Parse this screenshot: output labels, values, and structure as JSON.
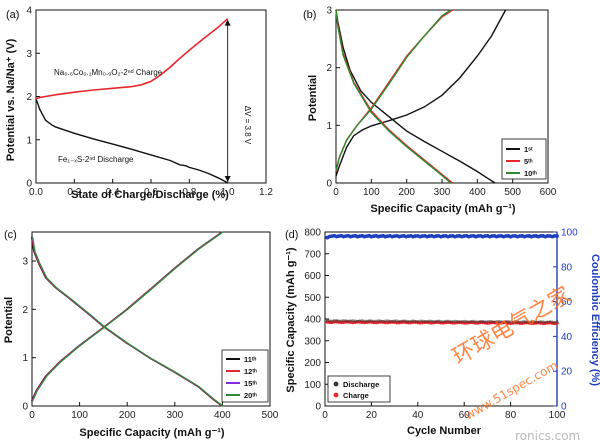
{
  "chart_data": [
    {
      "panel": "(a)",
      "type": "line",
      "xlabel": "State of Charge/Discharge (%)",
      "ylabel": "Potential vs. Na/Na⁺ (V)",
      "xlim": [
        0.0,
        1.2
      ],
      "ylim": [
        0,
        4
      ],
      "xticks": [
        "0.0",
        "0.2",
        "0.4",
        "0.6",
        "0.8",
        "1.0",
        "1.2"
      ],
      "yticks": [
        "0",
        "1",
        "2",
        "3",
        "4"
      ],
      "annotations": {
        "charge": "Na₀.₆Co₀.₁Mn₀.₉O₂-2ⁿᵈ Charge",
        "discharge": "Fe₁₋ₓS-2ⁿᵈ Discharge",
        "delta": "ΔV = 3.8 V"
      },
      "series": [
        {
          "name": "Na0.6Co0.1Mn0.9O2-2nd Charge",
          "color": "#e8262b",
          "x": [
            0.0,
            0.02,
            0.05,
            0.1,
            0.2,
            0.3,
            0.4,
            0.5,
            0.55,
            0.6,
            0.65,
            0.7,
            0.75,
            0.8,
            0.85,
            0.9,
            0.95,
            1.0
          ],
          "y": [
            1.95,
            1.98,
            2.0,
            2.04,
            2.1,
            2.15,
            2.19,
            2.23,
            2.27,
            2.35,
            2.5,
            2.68,
            2.88,
            3.07,
            3.25,
            3.43,
            3.6,
            3.8
          ]
        },
        {
          "name": "Fe1-xS-2nd Discharge",
          "color": "#111111",
          "x": [
            0.0,
            0.02,
            0.05,
            0.08,
            0.1,
            0.2,
            0.3,
            0.4,
            0.5,
            0.6,
            0.7,
            0.75,
            0.78,
            0.8,
            0.85,
            0.9,
            0.95,
            0.98,
            1.0
          ],
          "y": [
            1.95,
            1.7,
            1.45,
            1.35,
            1.3,
            1.15,
            1.02,
            0.9,
            0.78,
            0.65,
            0.52,
            0.42,
            0.4,
            0.36,
            0.3,
            0.22,
            0.12,
            0.05,
            0.0
          ]
        }
      ]
    },
    {
      "panel": "(b)",
      "type": "line",
      "xlabel": "Specific Capacity (mAh g⁻¹)",
      "ylabel": "Potential",
      "xlim": [
        0,
        600
      ],
      "ylim": [
        0,
        3
      ],
      "xticks": [
        "0",
        "100",
        "200",
        "300",
        "400",
        "500",
        "600"
      ],
      "yticks": [
        "0",
        "1",
        "2",
        "3"
      ],
      "legend": {
        "position": "bottom-right",
        "labels": [
          "1ˢᵗ",
          "5ᵗʰ",
          "10ᵗʰ"
        ]
      },
      "series": [
        {
          "name": "1st",
          "color": "#111111",
          "charge": {
            "x": [
              0,
              10,
              30,
              50,
              75,
              100,
              150,
              200,
              250,
              300,
              350,
              400,
              440,
              480
            ],
            "y": [
              0.12,
              0.3,
              0.62,
              0.82,
              0.92,
              0.99,
              1.08,
              1.18,
              1.32,
              1.52,
              1.82,
              2.2,
              2.55,
              3.0
            ]
          },
          "discharge": {
            "x": [
              0,
              5,
              20,
              40,
              70,
              100,
              150,
              200,
              250,
              300,
              350,
              400,
              430,
              450
            ],
            "y": [
              3.0,
              2.8,
              2.35,
              1.95,
              1.6,
              1.4,
              1.15,
              0.9,
              0.72,
              0.55,
              0.38,
              0.2,
              0.08,
              0.0
            ]
          }
        },
        {
          "name": "5th",
          "color": "#e8262b",
          "charge": {
            "x": [
              0,
              10,
              30,
              60,
              100,
              150,
              200,
              250,
              300,
              330
            ],
            "y": [
              0.2,
              0.45,
              0.75,
              1.0,
              1.3,
              1.75,
              2.2,
              2.55,
              2.88,
              3.0
            ]
          },
          "discharge": {
            "x": [
              0,
              5,
              20,
              50,
              100,
              150,
              200,
              250,
              290,
              330
            ],
            "y": [
              3.0,
              2.75,
              2.25,
              1.75,
              1.25,
              0.92,
              0.65,
              0.4,
              0.2,
              0.0
            ]
          }
        },
        {
          "name": "10th",
          "color": "#2e8b2e",
          "charge": {
            "x": [
              0,
              10,
              30,
              60,
              100,
              150,
              200,
              250,
              300,
              325
            ],
            "y": [
              0.22,
              0.45,
              0.74,
              1.0,
              1.28,
              1.72,
              2.18,
              2.55,
              2.9,
              3.0
            ]
          },
          "discharge": {
            "x": [
              0,
              5,
              20,
              50,
              100,
              150,
              200,
              250,
              290,
              325
            ],
            "y": [
              3.0,
              2.72,
              2.22,
              1.73,
              1.22,
              0.9,
              0.63,
              0.38,
              0.18,
              0.0
            ]
          }
        }
      ]
    },
    {
      "panel": "(c)",
      "type": "line",
      "xlabel": "Specific Capacity (mAh g⁻¹)",
      "ylabel": "Potential",
      "xlim": [
        0,
        500
      ],
      "ylim": [
        0,
        3.6
      ],
      "xticks": [
        "0",
        "100",
        "200",
        "300",
        "400",
        "500"
      ],
      "yticks": [
        "0",
        "1",
        "2",
        "3"
      ],
      "legend": {
        "position": "bottom-right",
        "labels": [
          "11ᵗʰ",
          "12ᵗʰ",
          "15ᵗʰ",
          "20ᵗʰ"
        ]
      },
      "series": [
        {
          "name": "11th",
          "color": "#111111"
        },
        {
          "name": "12th",
          "color": "#e8262b"
        },
        {
          "name": "15th",
          "color": "#8a2be2"
        },
        {
          "name": "20th",
          "color": "#2e8b2e"
        }
      ],
      "shared_curves": {
        "charge": {
          "x": [
            0,
            10,
            30,
            60,
            100,
            150,
            200,
            250,
            300,
            350,
            400
          ],
          "y": [
            0.1,
            0.32,
            0.62,
            0.92,
            1.25,
            1.62,
            2.0,
            2.42,
            2.85,
            3.25,
            3.6
          ]
        },
        "discharge": {
          "x": [
            0,
            5,
            15,
            30,
            50,
            80,
            120,
            150,
            200,
            250,
            300,
            350,
            380,
            400
          ],
          "y": [
            3.5,
            3.2,
            2.95,
            2.65,
            2.45,
            2.22,
            1.9,
            1.65,
            1.3,
            0.98,
            0.7,
            0.4,
            0.15,
            0.0
          ]
        }
      }
    },
    {
      "panel": "(d)",
      "type": "scatter",
      "xlabel": "Cycle Number",
      "ylabel": "Specific Capacity (mAh g⁻¹)",
      "y2label": "Coulombic Efficiency (%)",
      "xlim": [
        0,
        100
      ],
      "ylim": [
        0,
        800
      ],
      "y2lim": [
        0,
        100
      ],
      "xticks": [
        "0",
        "20",
        "40",
        "60",
        "80",
        "100"
      ],
      "yticks": [
        "0",
        "100",
        "200",
        "300",
        "400",
        "500",
        "600",
        "700",
        "800"
      ],
      "y2ticks": [
        "0",
        "20",
        "40",
        "60",
        "80",
        "100"
      ],
      "legend": {
        "position": "bottom-left",
        "labels": [
          "Discharge",
          "Charge"
        ]
      },
      "series": [
        {
          "name": "Discharge",
          "color": "#333333",
          "axis": "left",
          "x_range": [
            1,
            100
          ],
          "values_approx": 390
        },
        {
          "name": "Charge",
          "color": "#e8262b",
          "axis": "left",
          "x_range": [
            1,
            100
          ],
          "values_approx": 385
        },
        {
          "name": "Coulombic Efficiency",
          "color": "#1f3fbf",
          "axis": "right",
          "x_range": [
            1,
            100
          ],
          "values_approx": 97.5
        }
      ]
    }
  ],
  "watermark": {
    "cn": "环球电气之家",
    "url": "www.51spec.com",
    "tail": "ronics.com"
  }
}
